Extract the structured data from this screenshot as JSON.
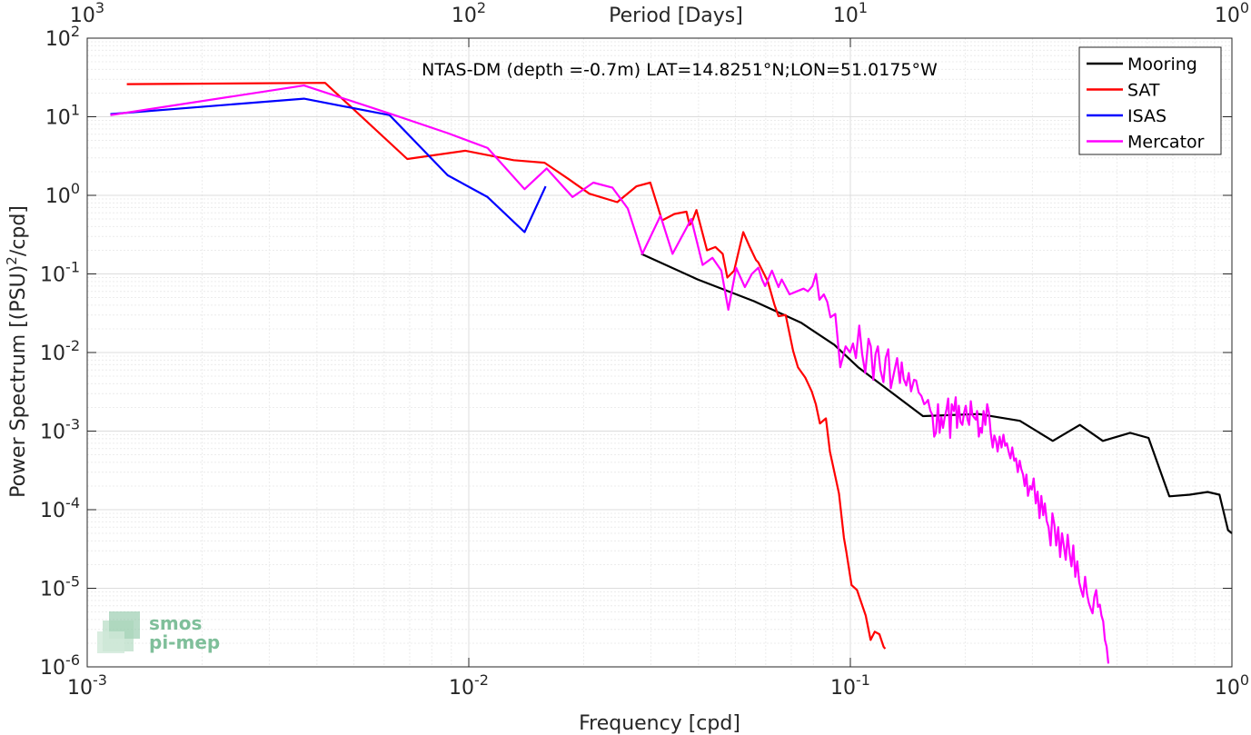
{
  "chart_data": {
    "type": "line",
    "title": "NTAS-DM (depth =-0.7m) LAT=14.8251°N;LON=51.0175°W",
    "xlabel": "Frequency [cpd]",
    "ylabel_main": "Power Spectrum [(PSU)",
    "ylabel_sup": "2",
    "ylabel_end": "/cpd]",
    "top_xlabel": "Period [Days]",
    "xscale": "log",
    "yscale": "log",
    "xlim": [
      0.001,
      1
    ],
    "ylim": [
      1e-06,
      100
    ],
    "grid": true,
    "legend_placement": "top-right",
    "x_ticks": [
      {
        "value": 0.001,
        "base": "10",
        "exp": "-3"
      },
      {
        "value": 0.01,
        "base": "10",
        "exp": "-2"
      },
      {
        "value": 0.1,
        "base": "10",
        "exp": "-1"
      },
      {
        "value": 1,
        "base": "10",
        "exp": "0"
      }
    ],
    "y_ticks": [
      {
        "value": 100,
        "base": "10",
        "exp": "2"
      },
      {
        "value": 10,
        "base": "10",
        "exp": "1"
      },
      {
        "value": 1,
        "base": "10",
        "exp": "0"
      },
      {
        "value": 0.1,
        "base": "10",
        "exp": "-1"
      },
      {
        "value": 0.01,
        "base": "10",
        "exp": "-2"
      },
      {
        "value": 0.001,
        "base": "10",
        "exp": "-3"
      },
      {
        "value": 0.0001,
        "base": "10",
        "exp": "-4"
      },
      {
        "value": 1e-05,
        "base": "10",
        "exp": "-5"
      },
      {
        "value": 1e-06,
        "base": "10",
        "exp": "-6"
      }
    ],
    "top_ticks": [
      {
        "freq": 0.001,
        "base": "10",
        "exp": "3"
      },
      {
        "freq": 0.01,
        "base": "10",
        "exp": "2"
      },
      {
        "freq": 0.1,
        "base": "10",
        "exp": "1"
      },
      {
        "freq": 1,
        "base": "10",
        "exp": "0"
      }
    ],
    "series": [
      {
        "name": "Mooring",
        "color": "#000000",
        "points": [
          [
            0.0283,
            0.18
          ],
          [
            0.0398,
            0.085
          ],
          [
            0.0559,
            0.045
          ],
          [
            0.0742,
            0.024
          ],
          [
            0.0908,
            0.0125
          ],
          [
            0.1048,
            0.0065
          ],
          [
            0.155,
            0.00155
          ],
          [
            0.2167,
            0.00165
          ],
          [
            0.2782,
            0.00135
          ],
          [
            0.3392,
            0.00075
          ],
          [
            0.3994,
            0.0012
          ],
          [
            0.4588,
            0.00075
          ],
          [
            0.5412,
            0.00095
          ],
          [
            0.6047,
            0.00082
          ],
          [
            0.6855,
            0.000148
          ],
          [
            0.7751,
            0.000155
          ],
          [
            0.8638,
            0.000168
          ],
          [
            0.9275,
            0.000155
          ],
          [
            0.9767,
            5.5e-05
          ],
          [
            1.0,
            5e-05
          ]
        ]
      },
      {
        "name": "SAT",
        "color": "#ff0000",
        "points": [
          [
            0.00127,
            26
          ],
          [
            0.0042,
            27
          ],
          [
            0.0069,
            2.9
          ],
          [
            0.0098,
            3.7
          ],
          [
            0.0131,
            2.8
          ],
          [
            0.0158,
            2.6
          ],
          [
            0.0183,
            1.6
          ],
          [
            0.0207,
            1.05
          ],
          [
            0.0245,
            0.82
          ],
          [
            0.0275,
            1.3
          ],
          [
            0.0299,
            1.45
          ],
          [
            0.0321,
            0.48
          ],
          [
            0.0346,
            0.58
          ],
          [
            0.0372,
            0.62
          ],
          [
            0.0379,
            0.42
          ],
          [
            0.0384,
            0.45
          ],
          [
            0.0395,
            0.65
          ],
          [
            0.0421,
            0.2
          ],
          [
            0.0443,
            0.22
          ],
          [
            0.0463,
            0.18
          ],
          [
            0.0476,
            0.09
          ],
          [
            0.0496,
            0.11
          ],
          [
            0.0513,
            0.22
          ],
          [
            0.0524,
            0.34
          ],
          [
            0.0545,
            0.22
          ],
          [
            0.0566,
            0.15
          ],
          [
            0.0574,
            0.14
          ],
          [
            0.0608,
            0.08
          ],
          [
            0.0633,
            0.04
          ],
          [
            0.0648,
            0.029
          ],
          [
            0.0677,
            0.03
          ],
          [
            0.0708,
            0.0105
          ],
          [
            0.0729,
            0.0065
          ],
          [
            0.0762,
            0.0048
          ],
          [
            0.0792,
            0.0032
          ],
          [
            0.0812,
            0.0022
          ],
          [
            0.0832,
            0.00125
          ],
          [
            0.0863,
            0.00145
          ],
          [
            0.0884,
            0.00055
          ],
          [
            0.0914,
            0.00026
          ],
          [
            0.0934,
            0.00016
          ],
          [
            0.0962,
            4.4e-05
          ],
          [
            0.0976,
            2.9e-05
          ],
          [
            0.1007,
            1.1e-05
          ],
          [
            0.1041,
            9.5e-06
          ],
          [
            0.1097,
            4.5e-06
          ],
          [
            0.113,
            2.2e-06
          ],
          [
            0.1159,
            2.8e-06
          ],
          [
            0.1192,
            2.6e-06
          ],
          [
            0.1222,
            1.8e-06
          ],
          [
            0.1234,
            1.7e-06
          ]
        ]
      },
      {
        "name": "ISAS",
        "color": "#0000ff",
        "points": [
          [
            0.00115,
            10.8
          ],
          [
            0.0037,
            17
          ],
          [
            0.0062,
            10.5
          ],
          [
            0.0088,
            1.8
          ],
          [
            0.0112,
            0.95
          ],
          [
            0.014,
            0.34
          ],
          [
            0.0159,
            1.3
          ]
        ]
      },
      {
        "name": "Mercator",
        "color": "#ff00ff",
        "points": [
          [
            0.00115,
            10.5
          ],
          [
            0.0037,
            25
          ],
          [
            0.0062,
            11
          ],
          [
            0.0088,
            6.2
          ],
          [
            0.0112,
            4
          ],
          [
            0.014,
            1.2
          ],
          [
            0.016,
            2.2
          ],
          [
            0.0187,
            0.95
          ],
          [
            0.0212,
            1.45
          ],
          [
            0.0238,
            1.25
          ],
          [
            0.0261,
            0.68
          ],
          [
            0.0285,
            0.18
          ],
          [
            0.0318,
            0.55
          ],
          [
            0.0342,
            0.18
          ],
          [
            0.0383,
            0.5
          ],
          [
            0.041,
            0.13
          ],
          [
            0.0435,
            0.16
          ],
          [
            0.0459,
            0.11
          ],
          [
            0.0479,
            0.035
          ],
          [
            0.0502,
            0.12
          ],
          [
            0.0529,
            0.068
          ],
          [
            0.0552,
            0.1
          ],
          [
            0.0574,
            0.12
          ],
          [
            0.0587,
            0.085
          ],
          [
            0.0598,
            0.07
          ],
          [
            0.0623,
            0.11
          ],
          [
            0.0648,
            0.068
          ],
          [
            0.0661,
            0.085
          ],
          [
            0.0693,
            0.055
          ],
          [
            0.0724,
            0.06
          ],
          [
            0.0754,
            0.065
          ],
          [
            0.0774,
            0.06
          ],
          [
            0.0795,
            0.07
          ],
          [
            0.0813,
            0.1
          ],
          [
            0.083,
            0.047
          ],
          [
            0.0852,
            0.055
          ],
          [
            0.087,
            0.044
          ],
          [
            0.0887,
            0.028
          ],
          [
            0.0913,
            0.031
          ],
          [
            0.0941,
            0.0065
          ],
          [
            0.0972,
            0.012
          ],
          [
            0.0998,
            0.01
          ],
          [
            0.1016,
            0.013
          ],
          [
            0.1034,
            0.0085
          ],
          [
            0.1055,
            0.022
          ],
          [
            0.1074,
            0.0095
          ],
          [
            0.1094,
            0.0055
          ],
          [
            0.1116,
            0.015
          ],
          [
            0.1131,
            0.012
          ],
          [
            0.1149,
            0.0045
          ],
          [
            0.1164,
            0.0095
          ],
          [
            0.1181,
            0.012
          ],
          [
            0.1199,
            0.006
          ],
          [
            0.1221,
            0.0042
          ],
          [
            0.1238,
            0.0085
          ],
          [
            0.1257,
            0.011
          ],
          [
            0.1276,
            0.0035
          ],
          [
            0.1301,
            0.0055
          ],
          [
            0.1326,
            0.0085
          ],
          [
            0.1349,
            0.0041
          ],
          [
            0.1363,
            0.0075
          ],
          [
            0.138,
            0.0046
          ],
          [
            0.1402,
            0.0038
          ],
          [
            0.1423,
            0.0055
          ],
          [
            0.1442,
            0.0032
          ],
          [
            0.1469,
            0.0045
          ],
          [
            0.1487,
            0.0044
          ],
          [
            0.151,
            0.0031
          ],
          [
            0.1535,
            0.0028
          ],
          [
            0.1562,
            0.0022
          ],
          [
            0.1579,
            0.0023
          ],
          [
            0.1598,
            0.0025
          ],
          [
            0.1609,
            0.0021
          ],
          [
            0.1622,
            0.0018
          ],
          [
            0.1641,
            0.0016
          ],
          [
            0.1659,
            0.00085
          ],
          [
            0.1676,
            0.00095
          ],
          [
            0.1697,
            0.0022
          ],
          [
            0.1713,
            0.00095
          ],
          [
            0.1732,
            0.0015
          ],
          [
            0.1749,
            0.0011
          ],
          [
            0.1768,
            0.0015
          ],
          [
            0.1787,
            0.0019
          ],
          [
            0.1805,
            0.0026
          ],
          [
            0.1827,
            0.00082
          ],
          [
            0.1844,
            0.0022
          ],
          [
            0.1868,
            0.0018
          ],
          [
            0.1889,
            0.0027
          ],
          [
            0.1903,
            0.0011
          ],
          [
            0.1924,
            0.0021
          ],
          [
            0.1944,
            0.0013
          ],
          [
            0.1966,
            0.0012
          ],
          [
            0.1985,
            0.0017
          ],
          [
            0.2006,
            0.0021
          ],
          [
            0.2028,
            0.0014
          ],
          [
            0.2048,
            0.0012
          ],
          [
            0.2069,
            0.0024
          ],
          [
            0.2088,
            0.0016
          ],
          [
            0.2108,
            0.0015
          ],
          [
            0.2133,
            0.0014
          ],
          [
            0.2149,
            0.0018
          ],
          [
            0.2171,
            0.00085
          ],
          [
            0.2193,
            0.0011
          ],
          [
            0.2212,
            0.00095
          ],
          [
            0.2234,
            0.0018
          ],
          [
            0.2258,
            0.0012
          ],
          [
            0.2283,
            0.0022
          ],
          [
            0.2308,
            0.0017
          ],
          [
            0.2333,
            0.00095
          ],
          [
            0.2361,
            0.00062
          ],
          [
            0.2384,
            0.00088
          ],
          [
            0.2409,
            0.00075
          ],
          [
            0.2432,
            0.00055
          ],
          [
            0.2461,
            0.00085
          ],
          [
            0.249,
            0.00062
          ],
          [
            0.2519,
            0.0009
          ],
          [
            0.2545,
            0.00065
          ],
          [
            0.2572,
            0.0007
          ],
          [
            0.2599,
            0.00055
          ],
          [
            0.2627,
            0.00045
          ],
          [
            0.2657,
            0.00062
          ],
          [
            0.2688,
            0.00042
          ],
          [
            0.2717,
            0.00045
          ],
          [
            0.2746,
            0.0003
          ],
          [
            0.2778,
            0.00042
          ],
          [
            0.2805,
            0.00033
          ],
          [
            0.2836,
            0.00028
          ],
          [
            0.2864,
            0.0002
          ],
          [
            0.2894,
            0.00028
          ],
          [
            0.2921,
            0.00015
          ],
          [
            0.2957,
            0.0002
          ],
          [
            0.2989,
            0.00018
          ],
          [
            0.3023,
            0.00025
          ],
          [
            0.3061,
            0.00012
          ],
          [
            0.3096,
            0.00017
          ],
          [
            0.3131,
            7.8e-05
          ],
          [
            0.3166,
            0.00015
          ],
          [
            0.3203,
            8.5e-05
          ],
          [
            0.3235,
            0.00012
          ],
          [
            0.327,
            7.2e-05
          ],
          [
            0.3308,
            6e-05
          ],
          [
            0.3348,
            3.5e-05
          ],
          [
            0.3385,
            9e-05
          ],
          [
            0.3425,
            6.4e-05
          ],
          [
            0.3464,
            3.5e-05
          ],
          [
            0.3506,
            6e-05
          ],
          [
            0.3546,
            2.5e-05
          ],
          [
            0.3587,
            5e-05
          ],
          [
            0.3628,
            3.4e-05
          ],
          [
            0.3669,
            2.3e-05
          ],
          [
            0.3712,
            4.8e-05
          ],
          [
            0.3754,
            2.8e-05
          ],
          [
            0.3797,
            1.9e-05
          ],
          [
            0.384,
            3.5e-05
          ],
          [
            0.3887,
            1.4e-05
          ],
          [
            0.3934,
            2.2e-05
          ],
          [
            0.3979,
            1.2e-05
          ],
          [
            0.4026,
            9.5e-06
          ],
          [
            0.4074,
            7.8e-06
          ],
          [
            0.4124,
            1.4e-05
          ],
          [
            0.4171,
            8.5e-06
          ],
          [
            0.4218,
            6.5e-06
          ],
          [
            0.4265,
            5.5e-06
          ],
          [
            0.4313,
            4.8e-06
          ],
          [
            0.4361,
            7.8e-06
          ],
          [
            0.4408,
            9.5e-06
          ],
          [
            0.4456,
            5.8e-06
          ],
          [
            0.4505,
            6.2e-06
          ],
          [
            0.4552,
            4.5e-06
          ],
          [
            0.4598,
            3.8e-06
          ],
          [
            0.4646,
            2.2e-06
          ],
          [
            0.4695,
            1.8e-06
          ],
          [
            0.4744,
            1.1e-06
          ],
          [
            0.4794,
            9.5e-07
          ]
        ]
      }
    ]
  },
  "logo": {
    "line1": "smos",
    "line2": "pi-mep"
  },
  "colors": {
    "axis": "#262626",
    "grid": "#d9d9d9",
    "logo": "#7fbf9a"
  }
}
